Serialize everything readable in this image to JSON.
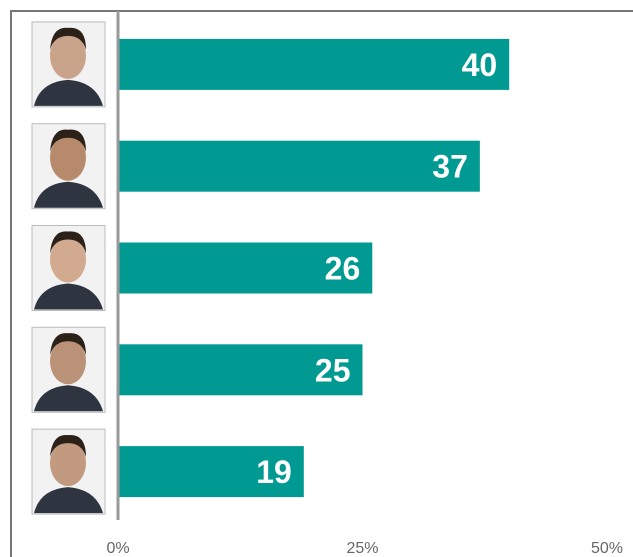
{
  "chart_data": {
    "type": "hbar",
    "categories": [
      null,
      null,
      null,
      null,
      null
    ],
    "values": [
      40,
      37,
      26,
      25,
      19
    ],
    "color": "#009a93",
    "xlim": [
      0,
      50
    ],
    "xticks": [
      {
        "value": 0,
        "label": "0%"
      },
      {
        "value": 25,
        "label": "25%"
      },
      {
        "value": 50,
        "label": "50%"
      }
    ]
  }
}
